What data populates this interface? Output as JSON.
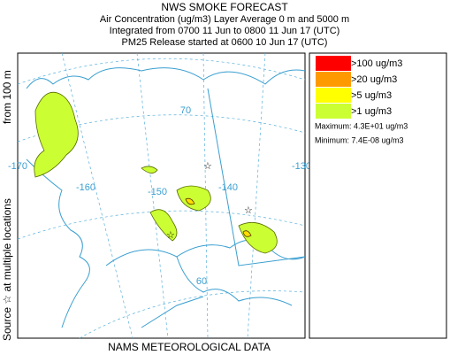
{
  "header": {
    "title": "NWS SMOKE FORECAST",
    "lines": [
      "Air Concentration (ug/m3) Layer Average    0 m and  5000 m",
      "Integrated from 0700 11 Jun to 0800 11 Jun 17 (UTC)",
      "PM25 Release started at 0600 10 Jun 17 (UTC)"
    ]
  },
  "side_label": {
    "source": "Source ☆ at multiple locations",
    "height": "from  100 m"
  },
  "footer": "NAMS METEOROLOGICAL DATA",
  "map": {
    "grid_labels": [
      "70",
      "-170",
      "-160",
      "-150",
      "-140",
      "-130",
      "60"
    ]
  },
  "legend": {
    "items": [
      {
        "label": ">100 ug/m3",
        "color": "#ff0000"
      },
      {
        "label": ">20 ug/m3",
        "color": "#ff9900"
      },
      {
        "label": ">5 ug/m3",
        "color": "#ffff00"
      },
      {
        "label": ">1 ug/m3",
        "color": "#ccff33"
      }
    ],
    "maximum": "Maximum: 4.3E+01 ug/m3",
    "minimum": "Minimum: 7.4E-08 ug/m3"
  }
}
